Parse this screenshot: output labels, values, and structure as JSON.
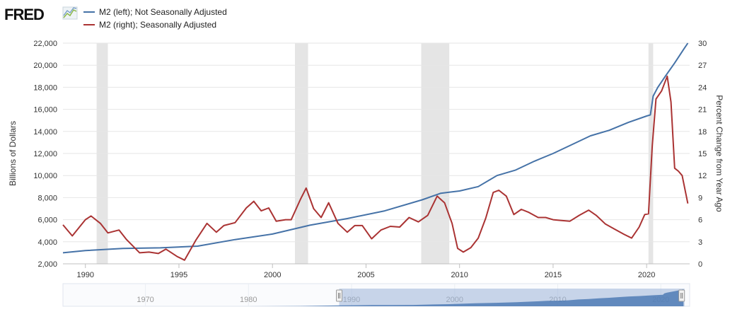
{
  "logo": {
    "text": "FRED"
  },
  "legend": [
    {
      "label": "M2 (left); Not Seasonally Adjusted",
      "color": "#4572a7"
    },
    {
      "label": "M2 (right); Seasonally Adjusted",
      "color": "#aa3333"
    }
  ],
  "chart_data": {
    "type": "line",
    "title": "",
    "xlabel": "",
    "ylabel_left": "Billions of Dollars",
    "ylabel_right": "Percent Change from Year Ago",
    "xlim": [
      1988.8,
      2022.3
    ],
    "ylim_left": [
      2000,
      22000
    ],
    "ylim_right": [
      0,
      30
    ],
    "x_ticks": [
      1990,
      1995,
      2000,
      2005,
      2010,
      2015,
      2020
    ],
    "y_ticks_left": [
      "2,000",
      "4,000",
      "6,000",
      "8,000",
      "10,000",
      "12,000",
      "14,000",
      "16,000",
      "18,000",
      "20,000",
      "22,000"
    ],
    "y_ticks_right": [
      "0",
      "3",
      "6",
      "9",
      "12",
      "15",
      "18",
      "21",
      "24",
      "27",
      "30"
    ],
    "grid": true,
    "recessions": [
      [
        1990.6,
        1991.2
      ],
      [
        2001.2,
        2001.9
      ],
      [
        2007.95,
        2009.45
      ],
      [
        2020.1,
        2020.35
      ]
    ],
    "series": [
      {
        "name": "M2 (left); Not Seasonally Adjusted",
        "axis": "left",
        "color": "#4572a7",
        "points": [
          [
            1988.8,
            3000
          ],
          [
            1990,
            3200
          ],
          [
            1992,
            3400
          ],
          [
            1994,
            3450
          ],
          [
            1996,
            3600
          ],
          [
            1998,
            4200
          ],
          [
            2000,
            4700
          ],
          [
            2001,
            5100
          ],
          [
            2002,
            5500
          ],
          [
            2004,
            6100
          ],
          [
            2006,
            6800
          ],
          [
            2008,
            7800
          ],
          [
            2009,
            8400
          ],
          [
            2010,
            8600
          ],
          [
            2011,
            9000
          ],
          [
            2012,
            10000
          ],
          [
            2013,
            10500
          ],
          [
            2014,
            11300
          ],
          [
            2015,
            12000
          ],
          [
            2016,
            12800
          ],
          [
            2017,
            13600
          ],
          [
            2018,
            14100
          ],
          [
            2019,
            14800
          ],
          [
            2020.0,
            15400
          ],
          [
            2020.2,
            15500
          ],
          [
            2020.35,
            17200
          ],
          [
            2020.6,
            18000
          ],
          [
            2021,
            19000
          ],
          [
            2021.5,
            20200
          ],
          [
            2022,
            21500
          ],
          [
            2022.2,
            22000
          ]
        ]
      },
      {
        "name": "M2 (right); Seasonally Adjusted",
        "axis": "right",
        "color": "#aa3333",
        "points": [
          [
            1988.8,
            5.3
          ],
          [
            1989.3,
            3.8
          ],
          [
            1990,
            6.0
          ],
          [
            1990.3,
            6.5
          ],
          [
            1990.8,
            5.5
          ],
          [
            1991.2,
            4.2
          ],
          [
            1991.8,
            4.6
          ],
          [
            1992.2,
            3.3
          ],
          [
            1992.9,
            1.5
          ],
          [
            1993.4,
            1.6
          ],
          [
            1993.9,
            1.4
          ],
          [
            1994.3,
            2.0
          ],
          [
            1994.9,
            1.0
          ],
          [
            1995.3,
            0.5
          ],
          [
            1995.9,
            3.2
          ],
          [
            1996.5,
            5.5
          ],
          [
            1997.0,
            4.3
          ],
          [
            1997.4,
            5.2
          ],
          [
            1998.0,
            5.6
          ],
          [
            1998.6,
            7.6
          ],
          [
            1999.0,
            8.5
          ],
          [
            1999.4,
            7.2
          ],
          [
            1999.8,
            7.6
          ],
          [
            2000.2,
            5.8
          ],
          [
            2000.7,
            6.0
          ],
          [
            2001.0,
            6.0
          ],
          [
            2001.5,
            8.8
          ],
          [
            2001.8,
            10.3
          ],
          [
            2002.2,
            7.5
          ],
          [
            2002.6,
            6.3
          ],
          [
            2003.0,
            8.3
          ],
          [
            2003.5,
            5.5
          ],
          [
            2004.0,
            4.3
          ],
          [
            2004.4,
            5.2
          ],
          [
            2004.8,
            5.2
          ],
          [
            2005.3,
            3.4
          ],
          [
            2005.8,
            4.6
          ],
          [
            2006.3,
            5.1
          ],
          [
            2006.8,
            5.0
          ],
          [
            2007.3,
            6.3
          ],
          [
            2007.8,
            5.7
          ],
          [
            2008.3,
            6.6
          ],
          [
            2008.8,
            9.2
          ],
          [
            2009.2,
            8.3
          ],
          [
            2009.6,
            5.5
          ],
          [
            2009.9,
            2.1
          ],
          [
            2010.2,
            1.6
          ],
          [
            2010.6,
            2.2
          ],
          [
            2011.0,
            3.5
          ],
          [
            2011.4,
            6.2
          ],
          [
            2011.8,
            9.7
          ],
          [
            2012.1,
            10.0
          ],
          [
            2012.5,
            9.2
          ],
          [
            2012.9,
            6.7
          ],
          [
            2013.3,
            7.4
          ],
          [
            2013.7,
            7.0
          ],
          [
            2014.2,
            6.3
          ],
          [
            2014.6,
            6.3
          ],
          [
            2015.0,
            6.0
          ],
          [
            2015.4,
            5.9
          ],
          [
            2015.9,
            5.8
          ],
          [
            2016.4,
            6.6
          ],
          [
            2016.9,
            7.3
          ],
          [
            2017.3,
            6.6
          ],
          [
            2017.8,
            5.4
          ],
          [
            2018.3,
            4.7
          ],
          [
            2018.8,
            4.0
          ],
          [
            2019.2,
            3.5
          ],
          [
            2019.6,
            5.0
          ],
          [
            2019.9,
            6.7
          ],
          [
            2020.1,
            6.8
          ],
          [
            2020.3,
            16.0
          ],
          [
            2020.5,
            22.4
          ],
          [
            2020.8,
            23.5
          ],
          [
            2021.1,
            25.5
          ],
          [
            2021.3,
            22.0
          ],
          [
            2021.5,
            13.0
          ],
          [
            2021.7,
            12.6
          ],
          [
            2021.9,
            12.0
          ],
          [
            2022.2,
            8.2
          ]
        ]
      }
    ]
  },
  "navigator": {
    "ticks": [
      "1970",
      "1980",
      "1990",
      "2000",
      "2010",
      "2020"
    ],
    "range_start": 1988.8,
    "range_end": 2022.3
  }
}
